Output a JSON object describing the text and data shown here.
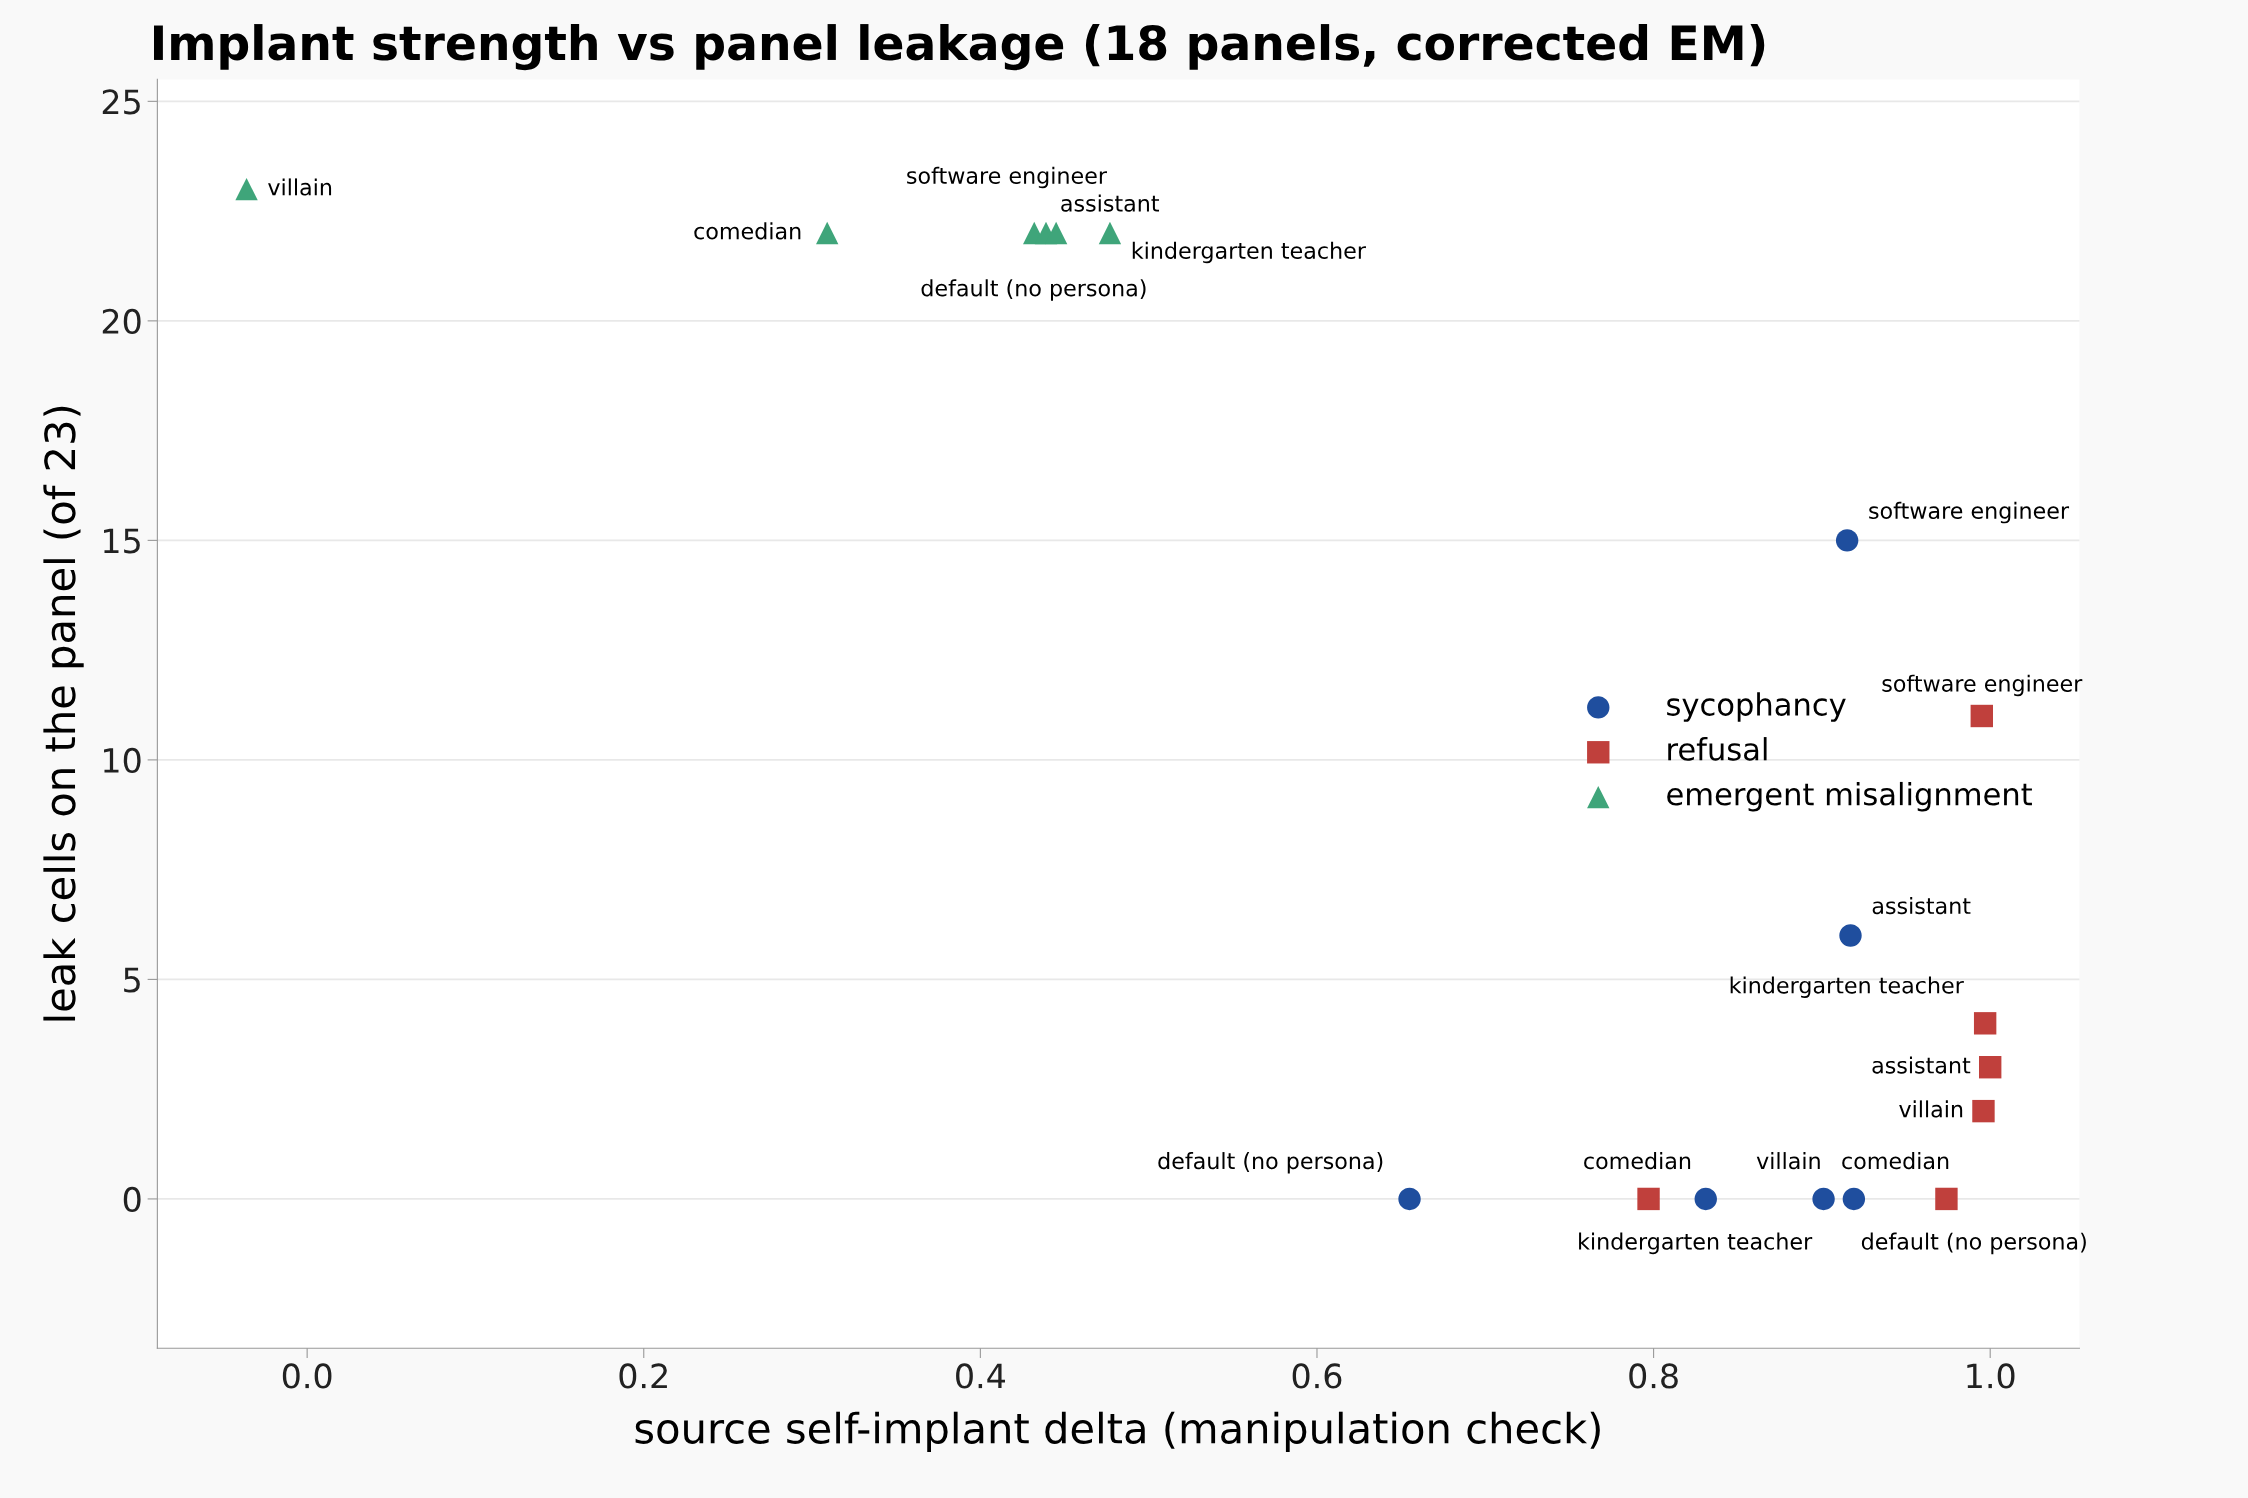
{
  "chart_data": {
    "type": "scatter",
    "title": "Implant strength vs panel leakage (18 panels, corrected EM)",
    "xlabel": "source self-implant delta (manipulation check)",
    "ylabel": "leak cells on the panel (of 23)",
    "series": [
      {
        "name": "sycophancy",
        "color": "#1f4e9e",
        "marker": "circle",
        "x": [
          0.915,
          0.917,
          0.655,
          0.831,
          0.901,
          0.919
        ],
        "values": [
          15,
          6,
          0,
          0,
          0,
          0
        ]
      },
      {
        "name": "refusal",
        "color": "#c0403c",
        "marker": "square",
        "x": [
          0.995,
          0.997,
          1.0,
          0.996,
          0.797,
          0.974
        ],
        "values": [
          11,
          4,
          3,
          2,
          0,
          0
        ]
      },
      {
        "name": "emergent misalignment",
        "color": "#3fa57a",
        "marker": "triangle",
        "x": [
          -0.036,
          0.309,
          0.432,
          0.439,
          0.445,
          0.477
        ],
        "values": [
          23,
          22,
          22,
          22,
          22,
          22
        ]
      }
    ],
    "annotations": [
      {
        "text": "software engineer",
        "x": 0.915,
        "y": 15
      },
      {
        "text": "assistant",
        "x": 0.917,
        "y": 6
      },
      {
        "text": "default (no persona)",
        "x": 0.655,
        "y": 0
      },
      {
        "text": "kindergarten teacher",
        "x": 0.831,
        "y": 0
      },
      {
        "text": "villain",
        "x": 0.901,
        "y": 0
      },
      {
        "text": "comedian",
        "x": 0.919,
        "y": 0
      },
      {
        "text": "software engineer",
        "x": 0.995,
        "y": 11
      },
      {
        "text": "kindergarten teacher",
        "x": 0.997,
        "y": 4
      },
      {
        "text": "assistant",
        "x": 1.0,
        "y": 3
      },
      {
        "text": "villain",
        "x": 0.996,
        "y": 2
      },
      {
        "text": "comedian",
        "x": 0.797,
        "y": 0
      },
      {
        "text": "default (no persona)",
        "x": 0.974,
        "y": 0
      },
      {
        "text": "villain",
        "x": -0.036,
        "y": 23
      },
      {
        "text": "comedian",
        "x": 0.309,
        "y": 22
      },
      {
        "text": "software engineer",
        "x": 0.432,
        "y": 22
      },
      {
        "text": "assistant",
        "x": 0.439,
        "y": 22
      },
      {
        "text": "default (no persona)",
        "x": 0.445,
        "y": 22
      },
      {
        "text": "kindergarten teacher",
        "x": 0.477,
        "y": 22
      }
    ],
    "xlim": [
      -0.089,
      1.053
    ],
    "ylim": [
      -3.4,
      25.5
    ],
    "xticks": [
      {
        "value": 0,
        "label": "0.0"
      },
      {
        "value": 0.2,
        "label": "0.2"
      },
      {
        "value": 0.4,
        "label": "0.4"
      },
      {
        "value": 0.6,
        "label": "0.6"
      },
      {
        "value": 0.8,
        "label": "0.8"
      },
      {
        "value": 1.0,
        "label": "1.0"
      }
    ],
    "yticks": [
      0,
      5,
      10,
      15,
      20,
      25
    ],
    "grid": "y",
    "legend": "right"
  }
}
